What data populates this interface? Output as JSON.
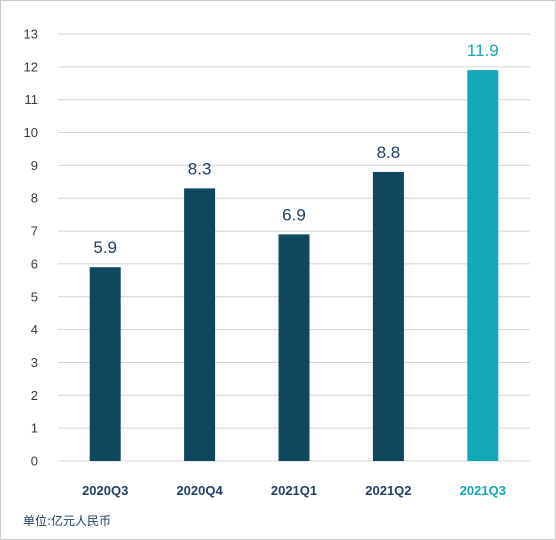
{
  "chart_data": {
    "type": "bar",
    "categories": [
      "2020Q3",
      "2020Q4",
      "2021Q1",
      "2021Q2",
      "2021Q3"
    ],
    "values": [
      5.9,
      8.3,
      6.9,
      8.8,
      11.9
    ],
    "data_labels": [
      "5.9",
      "8.3",
      "6.9",
      "8.8",
      "11.9"
    ],
    "ylim": [
      0,
      13
    ],
    "yticks": [
      0,
      1,
      2,
      3,
      4,
      5,
      6,
      7,
      8,
      9,
      10,
      11,
      12,
      13
    ],
    "grid": true,
    "unit_note": "单位:亿元人民币",
    "colors": {
      "bar": "#0f4761",
      "highlight_bar": "#13a8b5",
      "label": "#1f3f66",
      "highlight_label": "#13a8b5",
      "grid": "#d4d4d4"
    },
    "highlight_index": 4
  }
}
